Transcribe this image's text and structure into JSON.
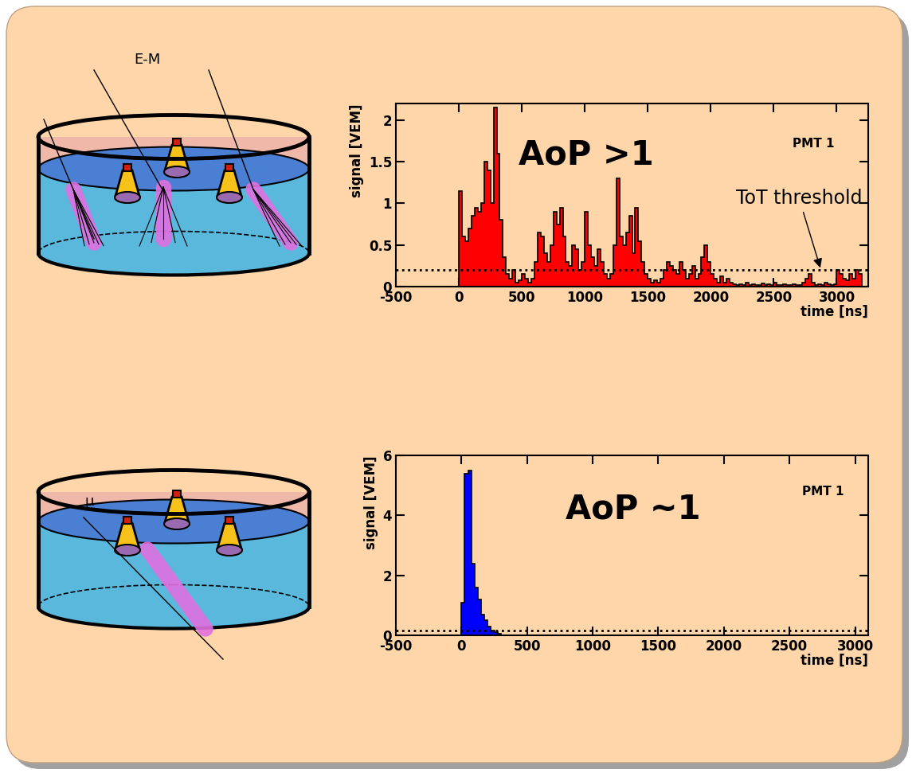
{
  "chart_data": [
    {
      "type": "histogram",
      "diagram_label": "E-M",
      "x_label": "time [ns]",
      "y_label": "signal [VEM]",
      "annotations": [
        "AoP >1",
        "PMT 1",
        "ToT threshold"
      ],
      "threshold": 0.2,
      "color": "#ff0000",
      "xlim": [
        -500,
        3250
      ],
      "ylim": [
        0,
        2.2
      ],
      "xticks": [
        -500,
        0,
        500,
        1000,
        1500,
        2000,
        2500,
        3000
      ],
      "yticks": [
        0,
        0.5,
        1,
        1.5,
        2
      ],
      "bins": [
        0,
        25,
        50,
        75,
        100,
        125,
        150,
        175,
        200,
        225,
        250,
        275,
        300,
        325,
        350,
        375,
        400,
        425,
        450,
        475,
        500,
        525,
        550,
        575,
        600,
        625,
        650,
        675,
        700,
        725,
        750,
        775,
        800,
        825,
        850,
        875,
        900,
        925,
        950,
        975,
        1000,
        1025,
        1050,
        1075,
        1100,
        1125,
        1150,
        1175,
        1200,
        1225,
        1250,
        1275,
        1300,
        1325,
        1350,
        1375,
        1400,
        1425,
        1450,
        1475,
        1500,
        1525,
        1550,
        1575,
        1600,
        1625,
        1650,
        1675,
        1700,
        1725,
        1750,
        1775,
        1800,
        1825,
        1850,
        1875,
        1900,
        1925,
        1950,
        1975,
        2000,
        2025,
        2050,
        2075,
        2100,
        2125,
        2150,
        2175,
        2200,
        2225,
        2250,
        2275,
        2300,
        2325,
        2350,
        2375,
        2400,
        2425,
        2450,
        2475,
        2500,
        2525,
        2550,
        2575,
        2600,
        2625,
        2650,
        2675,
        2700,
        2725,
        2750,
        2775,
        2800,
        2825,
        2850,
        2875,
        2900,
        2925,
        2950,
        2975,
        3000,
        3025,
        3050,
        3075,
        3100,
        3125,
        3150,
        3175,
        3200
      ],
      "counts": [
        1.15,
        0.6,
        0.55,
        0.7,
        0.85,
        0.95,
        0.9,
        1.0,
        1.5,
        1.4,
        1.0,
        2.15,
        1.6,
        0.8,
        0.35,
        0.15,
        0.1,
        0.2,
        0.05,
        0.08,
        0.15,
        0.1,
        0.05,
        0.1,
        0.3,
        0.65,
        0.6,
        0.4,
        0.3,
        0.5,
        0.9,
        0.75,
        0.95,
        0.6,
        0.3,
        0.25,
        0.5,
        0.45,
        0.2,
        0.3,
        0.9,
        0.5,
        0.35,
        0.25,
        0.45,
        0.3,
        0.15,
        0.1,
        0.15,
        0.5,
        1.3,
        0.6,
        0.5,
        0.65,
        0.85,
        0.4,
        0.95,
        0.55,
        0.3,
        0.15,
        0.1,
        0.05,
        0.08,
        0.05,
        0.1,
        0.2,
        0.3,
        0.25,
        0.2,
        0.15,
        0.3,
        0.2,
        0.1,
        0.15,
        0.25,
        0.1,
        0.15,
        0.35,
        0.5,
        0.3,
        0.15,
        0.1,
        0.05,
        0.12,
        0.05,
        0.1,
        0.05,
        0.03,
        0.02,
        0.03,
        0.02,
        0.05,
        0.02,
        0.03,
        0.02,
        0.02,
        0.04,
        0.02,
        0.03,
        0.02,
        0.05,
        0.02,
        0.02,
        0.03,
        0.02,
        0.02,
        0.03,
        0.02,
        0.02,
        0.05,
        0.1,
        0.15,
        0.05,
        0.02,
        0.03,
        0.02,
        0.05,
        0.03,
        0.02,
        0.03,
        0.2,
        0.15,
        0.1,
        0.08,
        0.15,
        0.1,
        0.2,
        0.15
      ]
    },
    {
      "type": "histogram",
      "diagram_label": "μ",
      "x_label": "time [ns]",
      "y_label": "signal [VEM]",
      "annotations": [
        "AoP ~1",
        "PMT 1"
      ],
      "threshold": 0.15,
      "color": "#0000ff",
      "xlim": [
        -500,
        3100
      ],
      "ylim": [
        0,
        6
      ],
      "xticks": [
        -500,
        0,
        500,
        1000,
        1500,
        2000,
        2500,
        3000
      ],
      "yticks": [
        0,
        2,
        4,
        6
      ],
      "bins": [
        0,
        25,
        50,
        75,
        100,
        125,
        150,
        175,
        200,
        225,
        250,
        275,
        300
      ],
      "counts": [
        1.1,
        5.4,
        5.5,
        2.4,
        1.6,
        1.2,
        0.7,
        0.5,
        0.3,
        0.15,
        0.1,
        0.05
      ]
    }
  ]
}
